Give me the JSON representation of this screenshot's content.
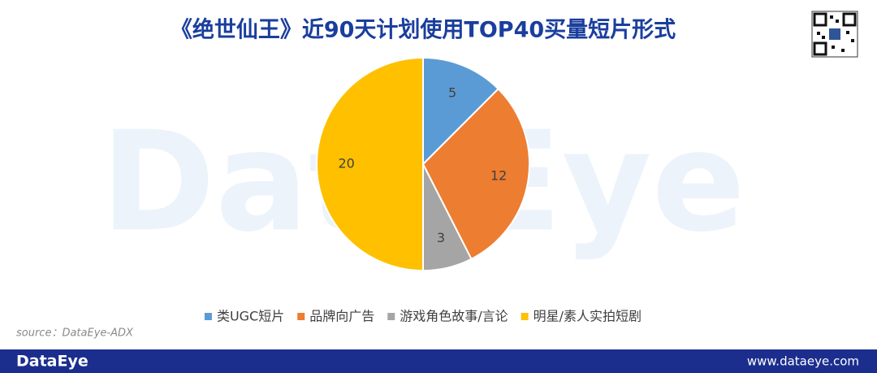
{
  "chart_data": {
    "type": "pie",
    "title": "《绝世仙王》近90天计划使用TOP40买量短片形式",
    "categories": [
      "类UGC短片",
      "品牌向广告",
      "游戏角色故事/言论",
      "明星/素人实拍短剧"
    ],
    "values": [
      5,
      12,
      3,
      20
    ],
    "colors": [
      "#5b9bd5",
      "#ed7d31",
      "#a5a5a5",
      "#ffc000"
    ],
    "source": "source：DataEye-ADX",
    "watermark": "DataEye"
  },
  "footer": {
    "brand": "DataEye",
    "url": "www.dataeye.com"
  }
}
